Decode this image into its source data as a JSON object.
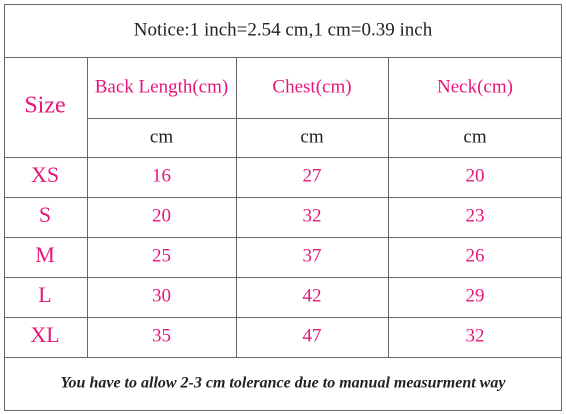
{
  "notice": "Notice:1 inch=2.54 cm,1 cm=0.39 inch",
  "header": {
    "size": "Size",
    "columns": [
      "Back Length(cm)",
      "Chest(cm)",
      "Neck(cm)"
    ],
    "units": [
      "cm",
      "cm",
      "cm"
    ]
  },
  "rows": [
    [
      "XS",
      16,
      27,
      20
    ],
    [
      "S",
      20,
      32,
      23
    ],
    [
      "M",
      25,
      37,
      26
    ],
    [
      "L",
      30,
      42,
      29
    ],
    [
      "XL",
      35,
      47,
      32
    ]
  ],
  "footer": "You have to allow 2-3 cm tolerance due to manual measurment way"
}
